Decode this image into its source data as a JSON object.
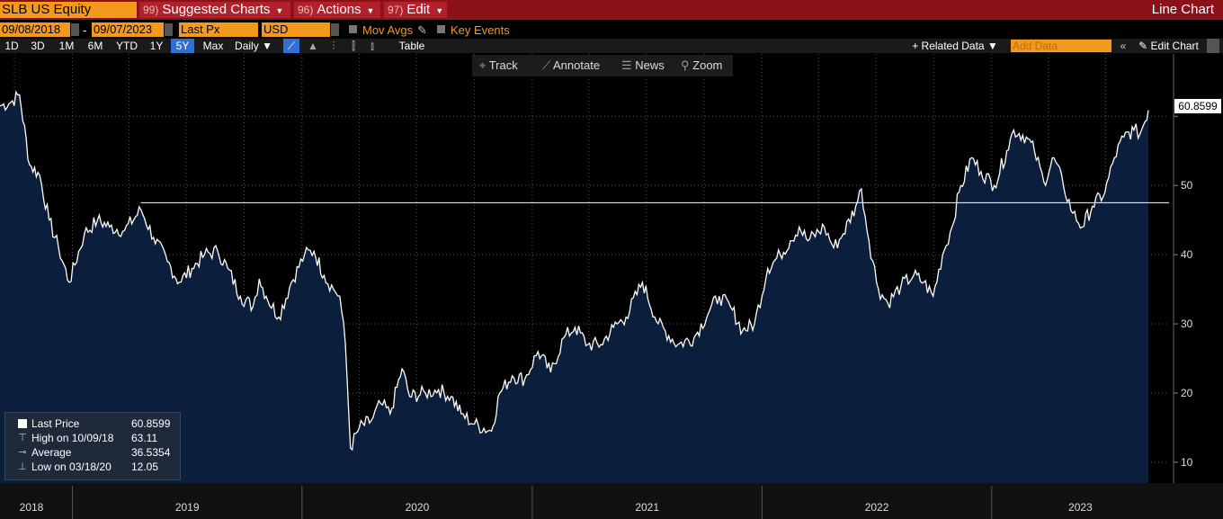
{
  "header": {
    "ticker": "SLB US Equity",
    "menus": [
      {
        "num": "99)",
        "label": "Suggested Charts"
      },
      {
        "num": "96)",
        "label": "Actions"
      },
      {
        "num": "97)",
        "label": "Edit"
      }
    ],
    "chart_type": "Line Chart"
  },
  "controls": {
    "start_date": "09/08/2018",
    "date_sep": "-",
    "end_date": "09/07/2023",
    "field": "Last Px",
    "currency": "USD",
    "mov_avgs": "Mov Avgs",
    "key_events": "Key Events",
    "periods": [
      "1D",
      "3D",
      "1M",
      "6M",
      "YTD",
      "1Y",
      "5Y",
      "Max"
    ],
    "selected_period": "5Y",
    "frequency": "Daily",
    "table": "Table",
    "related_data": "+ Related Data",
    "add_data_placeholder": "Add Data",
    "edit_chart": "Edit Chart"
  },
  "tools": {
    "track": "Track",
    "annotate": "Annotate",
    "news": "News",
    "zoom": "Zoom"
  },
  "legend": {
    "last_price_label": "Last Price",
    "last_price_value": "60.8599",
    "high_label": "High on 10/09/18",
    "high_value": "63.11",
    "average_label": "Average",
    "average_value": "36.5354",
    "low_label": "Low on 03/18/20",
    "low_value": "12.05"
  },
  "colors": {
    "accent_orange": "#f39a1e",
    "header_red": "#8b1219",
    "area_fill": "#0b1f3d",
    "line": "#ffffff"
  },
  "chart_data": {
    "type": "area",
    "x_start": "2018-09-08",
    "x_end": "2023-09-07",
    "ylim": [
      7,
      69
    ],
    "yticks": [
      10,
      20,
      30,
      40,
      50
    ],
    "xticks": [
      {
        "label": "2018",
        "date": "2018-09-08"
      },
      {
        "label": "2019",
        "date": "2019-01-01"
      },
      {
        "label": "2020",
        "date": "2020-01-01"
      },
      {
        "label": "2021",
        "date": "2021-01-01"
      },
      {
        "label": "2022",
        "date": "2022-01-01"
      },
      {
        "label": "2023",
        "date": "2023-01-01"
      }
    ],
    "average": 36.5354,
    "last_value_label": "60.8599",
    "series": [
      {
        "points": [
          [
            "2018-09-08",
            61.5
          ],
          [
            "2018-09-25",
            62
          ],
          [
            "2018-10-09",
            63.11
          ],
          [
            "2018-10-25",
            53
          ],
          [
            "2018-11-10",
            51.5
          ],
          [
            "2018-11-25",
            45
          ],
          [
            "2018-12-10",
            41
          ],
          [
            "2018-12-27",
            36
          ],
          [
            "2019-01-20",
            43
          ],
          [
            "2019-02-10",
            45
          ],
          [
            "2019-03-01",
            44
          ],
          [
            "2019-03-25",
            43.5
          ],
          [
            "2019-04-20",
            46.5
          ],
          [
            "2019-05-10",
            42.5
          ],
          [
            "2019-06-01",
            39
          ],
          [
            "2019-06-20",
            36
          ],
          [
            "2019-07-10",
            38
          ],
          [
            "2019-07-30",
            40
          ],
          [
            "2019-08-20",
            40.5
          ],
          [
            "2019-09-05",
            38
          ],
          [
            "2019-09-25",
            34
          ],
          [
            "2019-10-15",
            32.5
          ],
          [
            "2019-10-25",
            36.5
          ],
          [
            "2019-11-05",
            34
          ],
          [
            "2019-11-25",
            31
          ],
          [
            "2019-12-15",
            36
          ],
          [
            "2020-01-05",
            40
          ],
          [
            "2020-01-20",
            40.5
          ],
          [
            "2020-02-05",
            37
          ],
          [
            "2020-02-20",
            35
          ],
          [
            "2020-03-01",
            34
          ],
          [
            "2020-03-10",
            27
          ],
          [
            "2020-03-18",
            12.05
          ],
          [
            "2020-04-01",
            15
          ],
          [
            "2020-04-20",
            16
          ],
          [
            "2020-05-05",
            18.5
          ],
          [
            "2020-05-20",
            17
          ],
          [
            "2020-06-08",
            23.5
          ],
          [
            "2020-06-20",
            19.5
          ],
          [
            "2020-07-15",
            20
          ],
          [
            "2020-08-05",
            20.5
          ],
          [
            "2020-08-25",
            19.5
          ],
          [
            "2020-09-10",
            17
          ],
          [
            "2020-10-01",
            15.5
          ],
          [
            "2020-10-28",
            14.5
          ],
          [
            "2020-11-10",
            20
          ],
          [
            "2020-11-30",
            22.5
          ],
          [
            "2020-12-20",
            22
          ],
          [
            "2021-01-10",
            26
          ],
          [
            "2021-01-30",
            23
          ],
          [
            "2021-02-20",
            28
          ],
          [
            "2021-03-10",
            29.5
          ],
          [
            "2021-03-30",
            27
          ],
          [
            "2021-04-20",
            27
          ],
          [
            "2021-05-10",
            29.5
          ],
          [
            "2021-05-30",
            31
          ],
          [
            "2021-06-25",
            36
          ],
          [
            "2021-07-20",
            30
          ],
          [
            "2021-08-20",
            27
          ],
          [
            "2021-09-15",
            28
          ],
          [
            "2021-10-10",
            32
          ],
          [
            "2021-10-25",
            34
          ],
          [
            "2021-11-15",
            32
          ],
          [
            "2021-12-01",
            29
          ],
          [
            "2021-12-20",
            30
          ],
          [
            "2022-01-10",
            38
          ],
          [
            "2022-01-30",
            40
          ],
          [
            "2022-02-15",
            42
          ],
          [
            "2022-03-01",
            44
          ],
          [
            "2022-03-15",
            42
          ],
          [
            "2022-04-10",
            44
          ],
          [
            "2022-04-25",
            41
          ],
          [
            "2022-05-10",
            43
          ],
          [
            "2022-05-30",
            47
          ],
          [
            "2022-06-08",
            49.5
          ],
          [
            "2022-06-20",
            42
          ],
          [
            "2022-07-05",
            35
          ],
          [
            "2022-07-20",
            33
          ],
          [
            "2022-08-10",
            35.5
          ],
          [
            "2022-08-30",
            37
          ],
          [
            "2022-09-15",
            36
          ],
          [
            "2022-09-30",
            34
          ],
          [
            "2022-10-15",
            40
          ],
          [
            "2022-10-30",
            44
          ],
          [
            "2022-11-10",
            49
          ],
          [
            "2022-11-30",
            54
          ],
          [
            "2022-12-15",
            52
          ],
          [
            "2023-01-05",
            50
          ],
          [
            "2023-01-25",
            55
          ],
          [
            "2023-02-05",
            58
          ],
          [
            "2023-02-25",
            57
          ],
          [
            "2023-03-10",
            55
          ],
          [
            "2023-03-25",
            50.5
          ],
          [
            "2023-04-10",
            54
          ],
          [
            "2023-04-25",
            50
          ],
          [
            "2023-05-10",
            46
          ],
          [
            "2023-05-25",
            44
          ],
          [
            "2023-06-10",
            47
          ],
          [
            "2023-06-30",
            49
          ],
          [
            "2023-07-15",
            54
          ],
          [
            "2023-07-30",
            57
          ],
          [
            "2023-08-15",
            58
          ],
          [
            "2023-08-25",
            57.5
          ],
          [
            "2023-09-07",
            60.8599
          ]
        ]
      }
    ]
  }
}
